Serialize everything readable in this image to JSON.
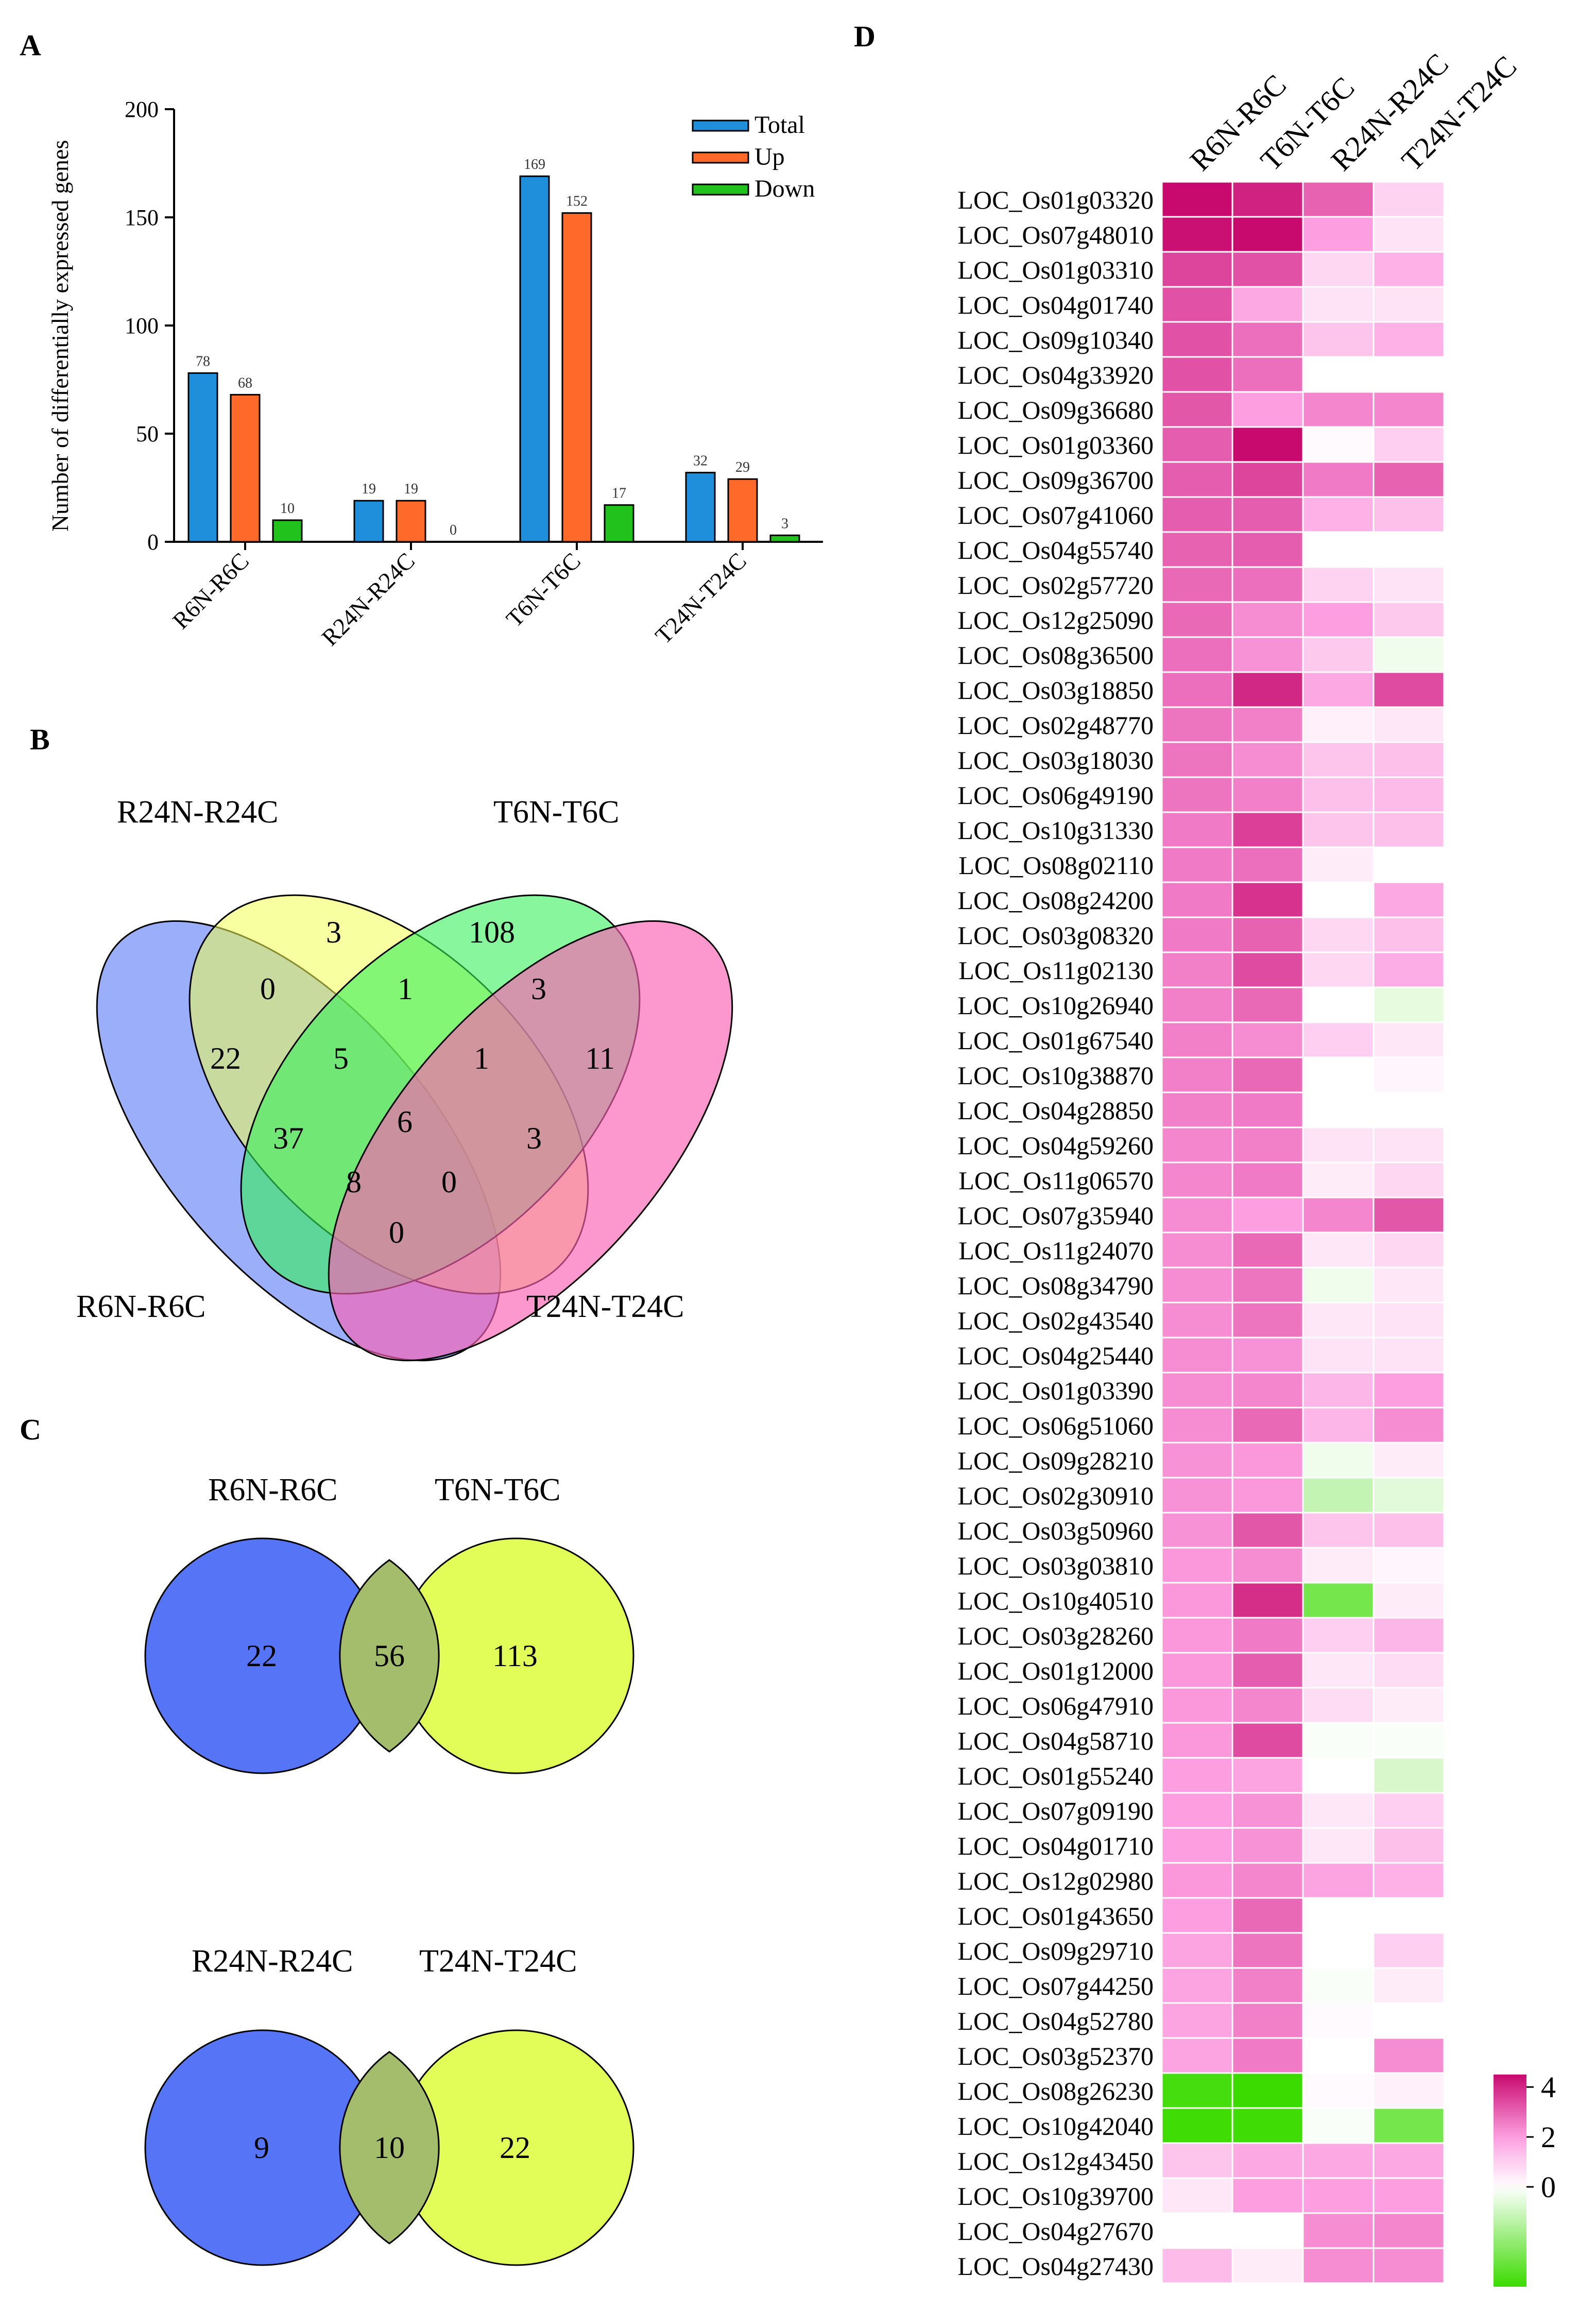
{
  "panels": {
    "A": {
      "letter": "A",
      "chart_data": {
        "type": "bar",
        "ylabel": "Number of differentially expressed genes",
        "xlabel": "",
        "ylim": [
          0,
          200
        ],
        "yticks": [
          0,
          50,
          100,
          150,
          200
        ],
        "categories": [
          "R6N-R6C",
          "R24N-R24C",
          "T6N-T6C",
          "T24N-T24C"
        ],
        "series": [
          {
            "name": "Total",
            "color": "#1f8fdc",
            "values": [
              78,
              19,
              169,
              32
            ]
          },
          {
            "name": "Up",
            "color": "#ff6a2b",
            "values": [
              68,
              19,
              152,
              29
            ]
          },
          {
            "name": "Down",
            "color": "#22c21c",
            "values": [
              10,
              0,
              17,
              3
            ]
          }
        ],
        "legend_position": "top-right"
      }
    },
    "B": {
      "letter": "B",
      "set_labels": [
        "R24N-R24C",
        "T6N-T6C",
        "R6N-R6C",
        "T24N-T24C"
      ],
      "set_colors": [
        "#f0ff54",
        "#37f05a",
        "#6f8cf8",
        "#fb61b4"
      ],
      "region_values": [
        "3",
        "108",
        "0",
        "1",
        "3",
        "22",
        "5",
        "1",
        "11",
        "6",
        "37",
        "3",
        "8",
        "0",
        "0"
      ]
    },
    "C": {
      "letter": "C",
      "venns": [
        {
          "left_label": "R6N-R6C",
          "right_label": "T6N-T6C",
          "left_only": "22",
          "overlap": "56",
          "right_only": "113"
        },
        {
          "left_label": "R24N-R24C",
          "right_label": "T24N-T24C",
          "left_only": "9",
          "overlap": "10",
          "right_only": "22"
        }
      ],
      "colors": {
        "left": "#5574f6",
        "right": "#e2fd58",
        "overlap": "#a4bd6c"
      }
    },
    "D": {
      "letter": "D",
      "chart_data": {
        "type": "heatmap",
        "columns": [
          "R6N-R6C",
          "T6N-T6C",
          "R24N-R24C",
          "T24N-T24C"
        ],
        "rows": [
          "LOC_Os01g03320",
          "LOC_Os07g48010",
          "LOC_Os01g03310",
          "LOC_Os04g01740",
          "LOC_Os09g10340",
          "LOC_Os04g33920",
          "LOC_Os09g36680",
          "LOC_Os01g03360",
          "LOC_Os09g36700",
          "LOC_Os07g41060",
          "LOC_Os04g55740",
          "LOC_Os02g57720",
          "LOC_Os12g25090",
          "LOC_Os08g36500",
          "LOC_Os03g18850",
          "LOC_Os02g48770",
          "LOC_Os03g18030",
          "LOC_Os06g49190",
          "LOC_Os10g31330",
          "LOC_Os08g02110",
          "LOC_Os08g24200",
          "LOC_Os03g08320",
          "LOC_Os11g02130",
          "LOC_Os10g26940",
          "LOC_Os01g67540",
          "LOC_Os10g38870",
          "LOC_Os04g28850",
          "LOC_Os04g59260",
          "LOC_Os11g06570",
          "LOC_Os07g35940",
          "LOC_Os11g24070",
          "LOC_Os08g34790",
          "LOC_Os02g43540",
          "LOC_Os04g25440",
          "LOC_Os01g03390",
          "LOC_Os06g51060",
          "LOC_Os09g28210",
          "LOC_Os02g30910",
          "LOC_Os03g50960",
          "LOC_Os03g03810",
          "LOC_Os10g40510",
          "LOC_Os03g28260",
          "LOC_Os01g12000",
          "LOC_Os06g47910",
          "LOC_Os04g58710",
          "LOC_Os01g55240",
          "LOC_Os07g09190",
          "LOC_Os04g01710",
          "LOC_Os12g02980",
          "LOC_Os01g43650",
          "LOC_Os09g29710",
          "LOC_Os07g44250",
          "LOC_Os04g52780",
          "LOC_Os03g52370",
          "LOC_Os08g26230",
          "LOC_Os10g42040",
          "LOC_Os12g43450",
          "LOC_Os10g39700",
          "LOC_Os04g27670",
          "LOC_Os04g27430"
        ],
        "values": [
          [
            4.6,
            4.1,
            3.0,
            0.9
          ],
          [
            4.4,
            4.5,
            2.0,
            0.6
          ],
          [
            3.5,
            3.3,
            0.8,
            1.6
          ],
          [
            3.3,
            1.8,
            0.6,
            0.6
          ],
          [
            3.3,
            2.8,
            1.2,
            1.6
          ],
          [
            3.3,
            2.8,
            null,
            null
          ],
          [
            3.2,
            2.0,
            2.4,
            2.4
          ],
          [
            3.1,
            4.6,
            0.1,
            1.0
          ],
          [
            3.1,
            3.5,
            2.6,
            3.0
          ],
          [
            3.1,
            3.1,
            1.6,
            1.3
          ],
          [
            3.0,
            3.1,
            null,
            null
          ],
          [
            2.9,
            2.8,
            0.9,
            0.6
          ],
          [
            2.9,
            2.3,
            2.0,
            1.1
          ],
          [
            2.8,
            2.2,
            1.1,
            -0.3
          ],
          [
            2.8,
            4.0,
            1.8,
            3.4
          ],
          [
            2.7,
            2.5,
            0.3,
            0.5
          ],
          [
            2.7,
            2.3,
            1.2,
            1.3
          ],
          [
            2.7,
            2.5,
            1.3,
            1.4
          ],
          [
            2.6,
            3.6,
            1.2,
            1.3
          ],
          [
            2.6,
            2.8,
            0.4,
            null
          ],
          [
            2.6,
            3.8,
            null,
            1.8
          ],
          [
            2.6,
            3.0,
            0.8,
            1.3
          ],
          [
            2.5,
            3.4,
            0.8,
            1.7
          ],
          [
            2.5,
            2.9,
            null,
            -0.5
          ],
          [
            2.5,
            2.3,
            1.0,
            0.5
          ],
          [
            2.5,
            2.9,
            null,
            0.2
          ],
          [
            2.5,
            2.6,
            null,
            null
          ],
          [
            2.4,
            2.5,
            0.6,
            0.6
          ],
          [
            2.4,
            2.6,
            0.4,
            0.8
          ],
          [
            2.3,
            2.0,
            2.4,
            3.2
          ],
          [
            2.3,
            2.9,
            0.5,
            0.8
          ],
          [
            2.3,
            2.7,
            -0.3,
            0.5
          ],
          [
            2.3,
            2.7,
            0.5,
            0.6
          ],
          [
            2.3,
            2.2,
            0.6,
            0.6
          ],
          [
            2.3,
            2.4,
            1.5,
            2.0
          ],
          [
            2.3,
            2.9,
            1.5,
            2.3
          ],
          [
            2.2,
            2.1,
            -0.3,
            0.4
          ],
          [
            2.2,
            2.1,
            -1.2,
            -0.6
          ],
          [
            2.2,
            3.2,
            1.2,
            1.3
          ],
          [
            2.1,
            2.3,
            0.4,
            0.2
          ],
          [
            2.1,
            3.9,
            -2.8,
            0.4
          ],
          [
            2.1,
            2.6,
            1.0,
            1.5
          ],
          [
            2.1,
            3.1,
            0.5,
            0.7
          ],
          [
            2.1,
            2.4,
            0.7,
            0.4
          ],
          [
            2.1,
            3.4,
            -0.1,
            -0.1
          ],
          [
            2.0,
            1.9,
            null,
            -0.8
          ],
          [
            2.0,
            2.2,
            0.5,
            1.0
          ],
          [
            2.0,
            2.2,
            0.5,
            1.3
          ],
          [
            2.1,
            2.4,
            1.9,
            1.6
          ],
          [
            2.0,
            2.9,
            null,
            null
          ],
          [
            1.9,
            2.7,
            null,
            1.0
          ],
          [
            1.9,
            2.5,
            -0.1,
            0.4
          ],
          [
            1.9,
            2.5,
            0.1,
            null
          ],
          [
            1.9,
            2.6,
            null,
            2.3
          ],
          [
            -3.8,
            -4.0,
            0.1,
            0.3
          ],
          [
            -3.9,
            -3.9,
            -0.1,
            -2.8
          ],
          [
            1.2,
            1.8,
            1.8,
            1.8
          ],
          [
            0.5,
            2.0,
            2.0,
            2.0
          ],
          [
            null,
            null,
            2.3,
            2.4
          ],
          [
            1.4,
            0.4,
            2.3,
            2.3
          ]
        ],
        "colorbar": {
          "ticks": [
            4,
            2,
            0
          ],
          "min": -4,
          "max": 4.5,
          "colors": {
            "high": "#c80a6e",
            "mid": "#fc9ee0",
            "zero": "#ffffff",
            "low": "#3bdb00"
          }
        }
      }
    }
  }
}
